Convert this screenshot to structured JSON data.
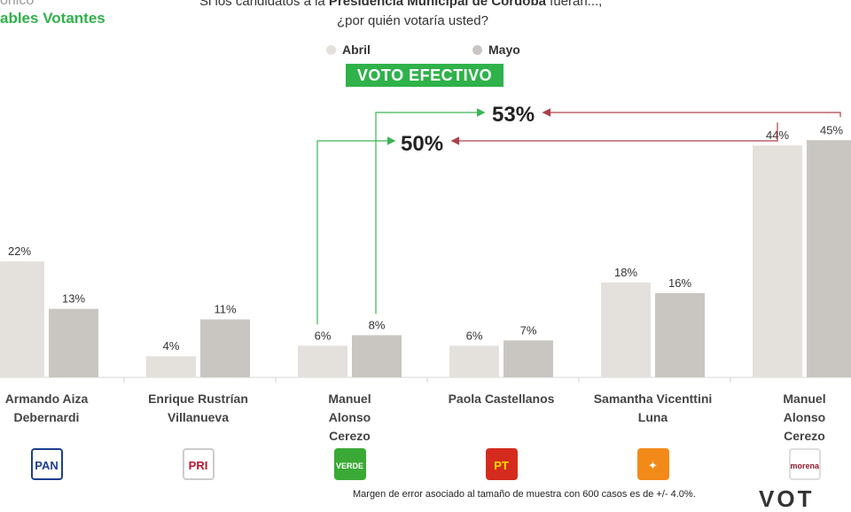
{
  "header": {
    "brand_top": "ónico",
    "brand": "ables Votantes",
    "question_line1_pre": "Si los candidatos a la ",
    "question_line1_bold": "Presidencia Municipal de Córdoba",
    "question_line1_post": " fueran...,",
    "question_line2": "¿por quién votaría usted?",
    "badge": "VOTO EFECTIVO"
  },
  "legend": [
    {
      "name": "Abril",
      "color": "#e4e1dc"
    },
    {
      "name": "Mayo",
      "color": "#c9c6c1"
    }
  ],
  "annotations": {
    "sum_abril": "50%",
    "sum_mayo": "53%",
    "arrow_green": "#3cb454",
    "arrow_red": "#b0404a"
  },
  "chart_data": {
    "type": "bar",
    "categories": [
      "Armando Aiza Debernardi",
      "Enrique Rustrían Villanueva",
      "Manuel Alonso Cerezo",
      "Paola Castellanos",
      "Samantha Vicenttini Luna",
      "Manuel Alonso Cerezo"
    ],
    "series": [
      {
        "name": "Abril",
        "values": [
          22,
          4,
          6,
          6,
          18,
          44
        ]
      },
      {
        "name": "Mayo",
        "values": [
          13,
          11,
          8,
          7,
          16,
          45
        ]
      }
    ],
    "value_labels": [
      [
        "22%",
        "4%",
        "6%",
        "6%",
        "18%",
        "44%"
      ],
      [
        "13%",
        "11%",
        "8%",
        "7%",
        "16%",
        "45%"
      ]
    ],
    "ylim": [
      0,
      50
    ],
    "legend_position": "top-center"
  },
  "candidates": [
    {
      "line1": "Armando Aiza",
      "line2": "Debernardi",
      "line3": "",
      "party": "PAN"
    },
    {
      "line1": "Enrique Rustrían",
      "line2": "Villanueva",
      "line3": "",
      "party": "PRI"
    },
    {
      "line1": "Manuel",
      "line2": "Alonso",
      "line3": "Cerezo",
      "party": "VERDE"
    },
    {
      "line1": "Paola Castellanos",
      "line2": "",
      "line3": "",
      "party": "PT"
    },
    {
      "line1": "Samantha Vicenttini",
      "line2": "Luna",
      "line3": "",
      "party": "MC"
    },
    {
      "line1": "Manuel",
      "line2": "Alonso",
      "line3": "Cerezo",
      "party": "morena"
    }
  ],
  "footer": {
    "note": "Margen de error asociado al tamaño de muestra con 600 casos es de +/- 4.0%.",
    "corner_logo": "VOT"
  }
}
